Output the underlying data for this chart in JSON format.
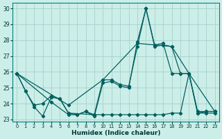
{
  "xlabel": "Humidex (Indice chaleur)",
  "xlim": [
    -0.5,
    23.5
  ],
  "ylim": [
    22.85,
    30.35
  ],
  "xticks": [
    0,
    1,
    2,
    3,
    4,
    5,
    6,
    7,
    8,
    9,
    10,
    11,
    12,
    13,
    14,
    15,
    16,
    17,
    18,
    19,
    20,
    21,
    22,
    23
  ],
  "yticks": [
    23,
    24,
    25,
    26,
    27,
    28,
    29,
    30
  ],
  "background_color": "#cceee8",
  "grid_color": "#aad4ce",
  "line_color": "#006060",
  "line1_x": [
    0,
    1,
    2,
    3,
    4,
    5,
    6,
    7,
    8,
    9,
    10,
    11,
    12,
    13,
    14,
    15,
    16,
    17,
    18,
    19,
    20,
    21,
    22,
    23
  ],
  "line1_y": [
    25.9,
    24.8,
    23.8,
    23.2,
    24.4,
    24.3,
    23.4,
    23.3,
    23.5,
    23.2,
    25.3,
    25.4,
    25.1,
    25.0,
    27.9,
    30.0,
    27.6,
    27.7,
    27.6,
    25.9,
    25.9,
    23.4,
    23.5,
    23.5
  ],
  "line2_x": [
    0,
    1,
    2,
    3,
    4,
    5,
    6,
    9,
    10,
    11,
    12,
    13,
    14,
    15,
    16,
    17,
    18,
    19,
    20,
    21,
    22,
    23
  ],
  "line2_y": [
    25.9,
    24.8,
    23.9,
    24.0,
    24.5,
    24.3,
    23.4,
    23.3,
    25.5,
    25.5,
    25.2,
    25.1,
    27.6,
    30.0,
    27.7,
    27.8,
    25.9,
    25.9,
    25.9,
    23.5,
    23.5,
    23.5
  ],
  "line3_x": [
    0,
    4,
    6,
    7,
    8,
    9,
    10,
    11,
    12,
    13,
    14,
    15,
    16,
    17,
    18,
    19,
    20,
    21,
    22,
    23
  ],
  "line3_y": [
    25.9,
    24.1,
    23.3,
    23.3,
    23.5,
    23.3,
    23.3,
    23.3,
    23.3,
    23.3,
    23.3,
    23.3,
    23.3,
    23.3,
    23.4,
    23.4,
    25.9,
    23.4,
    23.4,
    23.4
  ],
  "line4_x": [
    0,
    6,
    10,
    14,
    18,
    20,
    23
  ],
  "line4_y": [
    25.9,
    23.9,
    25.5,
    27.8,
    27.6,
    25.9,
    23.5
  ]
}
